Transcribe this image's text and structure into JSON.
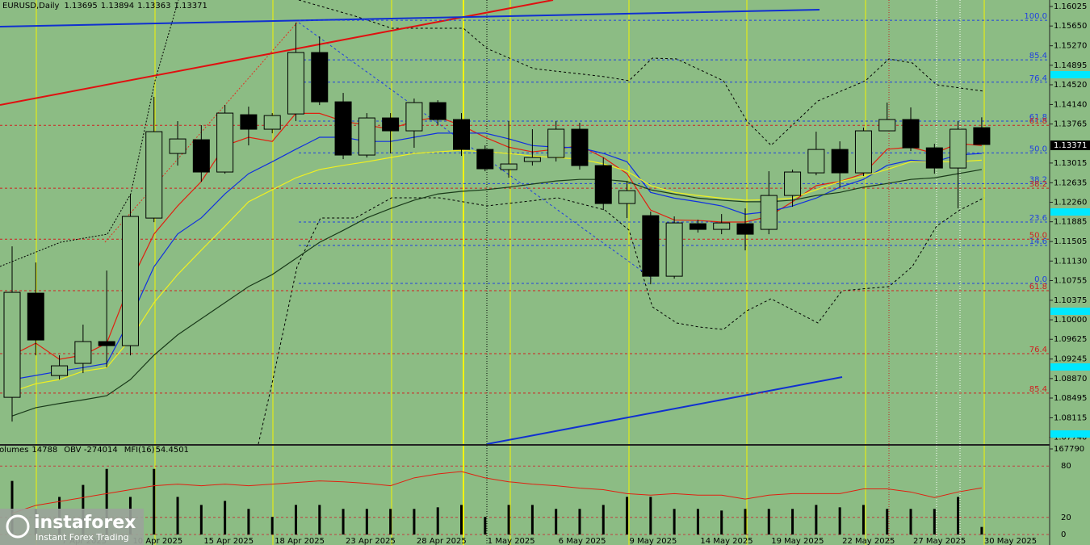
{
  "chart_data": [
    {
      "type": "candlestick",
      "title": "EURUSD,Daily",
      "categories": [
        null,
        null,
        "7 Apr 2025",
        null,
        null,
        "10 Apr 2025",
        null,
        null,
        "15 Apr 2025",
        null,
        null,
        "18 Apr 2025",
        null,
        null,
        "23 Apr 2025",
        null,
        null,
        "28 Apr 2025",
        null,
        null,
        "1 May 2025",
        null,
        null,
        "6 May 2025",
        null,
        null,
        "9 May 2025",
        null,
        null,
        "14 May 2025",
        null,
        null,
        "19 May 2025",
        null,
        null,
        "22 May 2025",
        null,
        null,
        "27 May 2025",
        null,
        null,
        "30 May 2025"
      ],
      "open": [
        1.08509,
        1.10512,
        1.08928,
        1.09162,
        1.09581,
        1.09503,
        1.11956,
        1.13199,
        1.13463,
        1.12842,
        1.13944,
        1.13665,
        1.13959,
        1.1514,
        1.14192,
        1.13168,
        1.13882,
        1.13634,
        1.14177,
        1.13851,
        1.13276,
        1.12888,
        1.13044,
        1.13121,
        1.13665,
        1.12966,
        1.12236,
        1.12003,
        1.10838,
        1.11848,
        1.11739,
        1.11848,
        1.11739,
        1.12391,
        1.12826,
        1.13276,
        1.12826,
        1.13634,
        1.13851,
        1.13307,
        1.12919,
        1.13695
      ],
      "high": [
        1.11413,
        1.11102,
        1.09317,
        1.09907,
        1.10947,
        1.12422,
        1.14286,
        1.1382,
        1.13742,
        1.1413,
        1.14099,
        1.13975,
        1.15714,
        1.1545,
        1.14363,
        1.13975,
        1.13975,
        1.14255,
        1.14223,
        1.13975,
        1.13354,
        1.1382,
        1.13665,
        1.1382,
        1.13789,
        1.13121,
        1.12655,
        1.12081,
        1.11988,
        1.11925,
        1.12034,
        1.12143,
        1.12857,
        1.12888,
        1.13618,
        1.13432,
        1.13696,
        1.14177,
        1.14084,
        1.13385,
        1.1382,
        1.13894
      ],
      "low": [
        1.08043,
        1.09317,
        1.08851,
        1.08975,
        1.09084,
        1.09317,
        1.11879,
        1.12966,
        1.12655,
        1.1281,
        1.13354,
        1.13587,
        1.1382,
        1.1413,
        1.1309,
        1.13121,
        1.13199,
        1.13308,
        1.13742,
        1.13152,
        1.12857,
        1.12733,
        1.12966,
        1.13044,
        1.12888,
        1.12112,
        1.11957,
        1.10683,
        1.10792,
        1.11677,
        1.11646,
        1.11335,
        1.11646,
        1.12174,
        1.12779,
        1.12547,
        1.12764,
        1.13634,
        1.13245,
        1.1281,
        1.12143,
        1.13363
      ],
      "close": [
        1.10528,
        1.09612,
        1.09115,
        1.09581,
        1.09503,
        1.11988,
        1.13618,
        1.13478,
        1.12842,
        1.13975,
        1.13665,
        1.13928,
        1.1514,
        1.14192,
        1.13168,
        1.13882,
        1.13634,
        1.14177,
        1.13851,
        1.13276,
        1.12904,
        1.12997,
        1.13121,
        1.13665,
        1.12966,
        1.12236,
        1.12484,
        1.10838,
        1.11863,
        1.11739,
        1.11863,
        1.11646,
        1.12391,
        1.12842,
        1.13276,
        1.12826,
        1.13634,
        1.13851,
        1.13307,
        1.12919,
        1.13665,
        1.13371
      ],
      "series": [
        {
          "color": "#e02010",
          "values": [
            1.0932,
            1.0955,
            1.0924,
            1.0932,
            1.0955,
            1.1071,
            1.1165,
            1.1219,
            1.1266,
            1.1335,
            1.1351,
            1.1343,
            1.1397,
            1.1397,
            1.1382,
            1.1374,
            1.1367,
            1.1382,
            1.139,
            1.1374,
            1.1351,
            1.1332,
            1.1323,
            1.1328,
            1.1335,
            1.1312,
            1.1281,
            1.1211,
            1.1192,
            1.1191,
            1.1188,
            1.1188,
            1.1199,
            1.1227,
            1.1258,
            1.1266,
            1.1281,
            1.1328,
            1.1332,
            1.132,
            1.1339,
            1.1335
          ]
        },
        {
          "color": "#1030e0",
          "values": [
            1.0885,
            1.0893,
            1.0901,
            1.0908,
            1.0916,
            1.1002,
            1.1102,
            1.1165,
            1.1196,
            1.1242,
            1.1281,
            1.1304,
            1.1328,
            1.1351,
            1.1351,
            1.1343,
            1.1343,
            1.1351,
            1.1359,
            1.1359,
            1.1359,
            1.1348,
            1.1335,
            1.1332,
            1.1331,
            1.132,
            1.1304,
            1.1245,
            1.1234,
            1.1227,
            1.1219,
            1.1203,
            1.1208,
            1.1219,
            1.1234,
            1.1255,
            1.127,
            1.1297,
            1.1307,
            1.1304,
            1.1317,
            1.132
          ]
        },
        {
          "color": "#f0f020",
          "values": [
            1.0862,
            1.0877,
            1.0885,
            1.0901,
            1.0908,
            1.0963,
            1.1033,
            1.1087,
            1.1134,
            1.118,
            1.1227,
            1.125,
            1.1273,
            1.1289,
            1.1297,
            1.1304,
            1.1312,
            1.132,
            1.1323,
            1.1326,
            1.1323,
            1.132,
            1.1315,
            1.1312,
            1.1309,
            1.13,
            1.1286,
            1.1258,
            1.1245,
            1.1239,
            1.1234,
            1.123,
            1.1231,
            1.1234,
            1.125,
            1.1266,
            1.1276,
            1.1289,
            1.1304,
            1.1304,
            1.1304,
            1.1307
          ]
        },
        {
          "color": "#1a3a1a",
          "values": [
            1.0815,
            1.0831,
            1.0839,
            1.0846,
            1.0854,
            1.0885,
            1.0932,
            1.0971,
            1.1002,
            1.1033,
            1.1064,
            1.1087,
            1.1118,
            1.1149,
            1.1172,
            1.1196,
            1.1214,
            1.123,
            1.1242,
            1.1247,
            1.125,
            1.1255,
            1.1261,
            1.1267,
            1.127,
            1.127,
            1.1266,
            1.125,
            1.1242,
            1.1234,
            1.123,
            1.1227,
            1.1227,
            1.123,
            1.1239,
            1.1245,
            1.1255,
            1.1262,
            1.127,
            1.1273,
            1.1281,
            1.1289
          ]
        }
      ],
      "ylim": [
        1.0761,
        1.1615
      ],
      "yticks": [
        1.16025,
        {
          "value": 1.1565,
          "label": "1.15650"
        },
        {
          "value": 1.1527,
          "label": "1.15270"
        },
        1.14895,
        {
          "value": 1.1452,
          "label": "1.14520"
        },
        {
          "value": 1.1414,
          "label": "1.14140"
        },
        1.13765,
        1.13015,
        1.12635,
        {
          "value": 1.1226,
          "label": "1.12260"
        },
        1.11885,
        1.11505,
        {
          "value": 1.1113,
          "label": "1.11130"
        },
        1.10755,
        1.10375,
        {
          "value": 1.1,
          "label": "1.10000"
        },
        1.09625,
        1.09245,
        {
          "value": 1.0887,
          "label": "1.08870"
        },
        1.08495,
        1.08115,
        {
          "value": 1.0774,
          "label": "1.07740"
        }
      ],
      "fib_upper": {
        "color": "#2040e0",
        "levels": [
          {
            "value": 1.1576,
            "label": "100.0"
          },
          {
            "value": 1.15,
            "label": "85.4"
          },
          {
            "value": 1.1457,
            "label": "76.4"
          },
          {
            "value": 1.1382,
            "label": "61.8"
          },
          {
            "value": 1.1321,
            "label": "50.0"
          },
          {
            "value": 1.1262,
            "label": "38.2"
          },
          {
            "value": 1.1188,
            "label": "23.6"
          },
          {
            "value": 1.1143,
            "label": "14.6"
          },
          {
            "value": 1.107,
            "label": "0.0"
          }
        ]
      },
      "fib_lower": {
        "color": "#d02020",
        "levels": [
          {
            "value": 1.1374,
            "label": "61.8"
          },
          {
            "value": 1.1253,
            "label": "38.2"
          },
          {
            "value": 1.1155,
            "label": "50.0"
          },
          {
            "value": 1.1056,
            "label": "61.8"
          },
          {
            "value": 1.0935,
            "label": "76.4"
          },
          {
            "value": 1.0859,
            "label": "85.4"
          }
        ]
      }
    },
    {
      "type": "indicator",
      "series": [
        {
          "name": "Volumes",
          "color": "#000000",
          "axis": "y2",
          "values": [
            105000,
            50200,
            73700,
            97200,
            128600,
            73700,
            128600,
            73700,
            58000,
            65900,
            50200,
            34500,
            58000,
            58000,
            50200,
            50200,
            50200,
            50200,
            53300,
            58000,
            34500,
            58000,
            58000,
            50200,
            50200,
            58000,
            73700,
            73700,
            50200,
            50200,
            47000,
            50200,
            50200,
            50200,
            58000,
            53300,
            58000,
            50200,
            50200,
            50200,
            73700,
            14788
          ]
        },
        {
          "name": "MFI(16)",
          "color": "#e02010",
          "values": [
            24.8,
            34.0,
            38.6,
            43.2,
            47.8,
            52.4,
            57.0,
            58.9,
            57.0,
            58.9,
            57.0,
            58.9,
            60.7,
            62.6,
            61.6,
            59.8,
            57.0,
            66.2,
            70.8,
            73.6,
            66.2,
            61.6,
            58.9,
            57.0,
            54.3,
            52.4,
            47.8,
            46.0,
            47.8,
            46.0,
            46.0,
            41.4,
            46.0,
            47.8,
            47.8,
            47.8,
            53.3,
            53.3,
            49.7,
            43.2,
            49.7,
            54.4501
          ]
        }
      ],
      "obv": {
        "name": "OBV",
        "value": -274014
      },
      "ylim": [
        0,
        100
      ],
      "yticks": [
        0,
        20,
        80
      ],
      "y2lim": [
        0,
        167790
      ],
      "y2ticks": [
        167790
      ]
    }
  ],
  "watermark": {
    "name": "instaforex",
    "tagline": "Instant Forex Trading"
  }
}
